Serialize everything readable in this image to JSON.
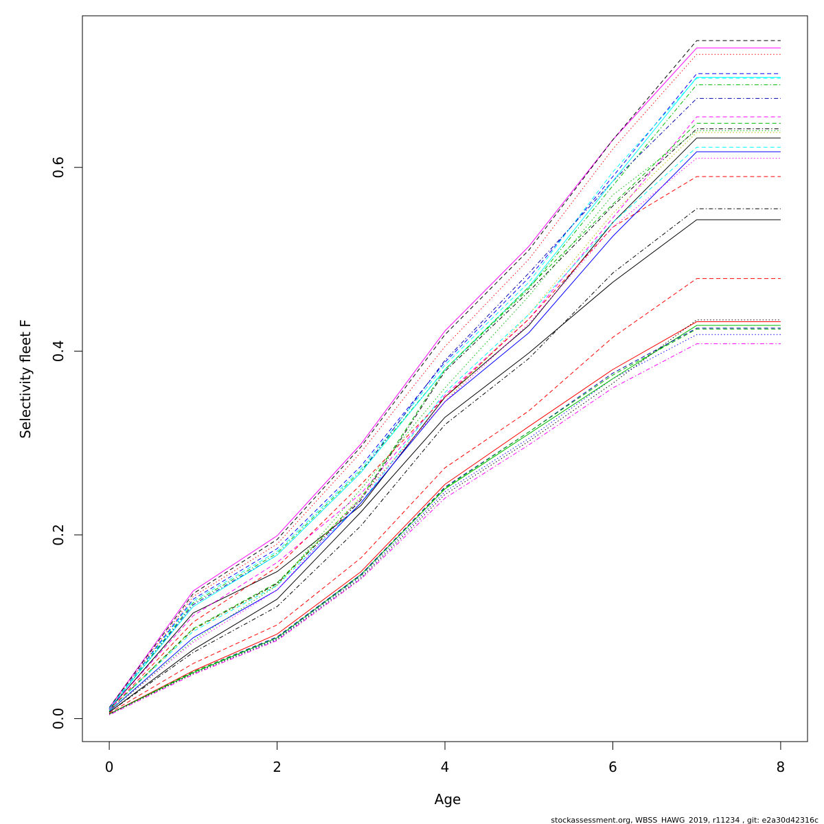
{
  "chart_data": {
    "type": "line",
    "xlabel": "Age",
    "ylabel": "Selectivity fleet F",
    "xlim": [
      -0.32,
      8.32
    ],
    "ylim": [
      -0.025,
      0.765
    ],
    "x_ticks": [
      0,
      2,
      4,
      6,
      8
    ],
    "y_ticks": [
      0.0,
      0.2,
      0.4,
      0.6
    ],
    "y_tick_labels": [
      "0.0",
      "0.2",
      "0.4",
      "0.6"
    ],
    "grid": false,
    "legend": "none",
    "footer": "stockassessment.org, WBSS_HAWG_2019, r11234 , git: e2a30d42316c",
    "x": [
      0,
      1,
      2,
      3,
      4,
      5,
      6,
      7,
      8
    ],
    "series": [
      {
        "color": "#ff00ff",
        "dash": "solid",
        "values": [
          0.012,
          0.139,
          0.199,
          0.299,
          0.422,
          0.514,
          0.63,
          0.73,
          0.73
        ]
      },
      {
        "color": "#000000",
        "dash": "dashed",
        "values": [
          0.012,
          0.136,
          0.195,
          0.296,
          0.418,
          0.51,
          0.63,
          0.738,
          0.738
        ]
      },
      {
        "color": "#ff0000",
        "dash": "dotted",
        "values": [
          0.011,
          0.133,
          0.19,
          0.29,
          0.405,
          0.5,
          0.62,
          0.723,
          0.723
        ]
      },
      {
        "color": "#0000ff",
        "dash": "dashed",
        "values": [
          0.011,
          0.13,
          0.185,
          0.275,
          0.388,
          0.48,
          0.59,
          0.702,
          0.702
        ]
      },
      {
        "color": "#00ffff",
        "dash": "dashed",
        "values": [
          0.011,
          0.128,
          0.182,
          0.272,
          0.385,
          0.475,
          0.595,
          0.697,
          0.697
        ]
      },
      {
        "color": "#00bb00",
        "dash": "dashdot",
        "values": [
          0.01,
          0.126,
          0.18,
          0.27,
          0.38,
          0.468,
          0.58,
          0.69,
          0.69
        ]
      },
      {
        "color": "#0000aa",
        "dash": "dashdot",
        "values": [
          0.01,
          0.124,
          0.178,
          0.268,
          0.39,
          0.485,
          0.585,
          0.675,
          0.675
        ]
      },
      {
        "color": "#00ffff",
        "dash": "solid",
        "values": [
          0.011,
          0.122,
          0.178,
          0.268,
          0.38,
          0.47,
          0.585,
          0.698,
          0.698
        ]
      },
      {
        "color": "#000000",
        "dash": "solid",
        "values": [
          0.01,
          0.115,
          0.16,
          0.232,
          0.35,
          0.428,
          0.54,
          0.632,
          0.632
        ]
      },
      {
        "color": "#ff00ff",
        "dash": "dashed",
        "values": [
          0.01,
          0.112,
          0.17,
          0.245,
          0.352,
          0.435,
          0.545,
          0.655,
          0.655
        ]
      },
      {
        "color": "#00bb00",
        "dash": "dashed",
        "values": [
          0.009,
          0.098,
          0.148,
          0.24,
          0.38,
          0.47,
          0.56,
          0.648,
          0.648
        ]
      },
      {
        "color": "#000000",
        "dash": "dashdot",
        "values": [
          0.009,
          0.097,
          0.147,
          0.238,
          0.378,
          0.465,
          0.558,
          0.642,
          0.642
        ]
      },
      {
        "color": "#ff0000",
        "dash": "dashed",
        "values": [
          0.009,
          0.105,
          0.165,
          0.255,
          0.35,
          0.435,
          0.535,
          0.59,
          0.59
        ]
      },
      {
        "color": "#bbbb00",
        "dash": "dotted",
        "values": [
          0.009,
          0.097,
          0.146,
          0.242,
          0.345,
          0.44,
          0.55,
          0.638,
          0.638
        ]
      },
      {
        "color": "#00ffff",
        "dash": "dashed",
        "values": [
          0.009,
          0.095,
          0.145,
          0.235,
          0.355,
          0.44,
          0.54,
          0.622,
          0.622
        ]
      },
      {
        "color": "#0000ff",
        "dash": "solid",
        "values": [
          0.008,
          0.088,
          0.14,
          0.235,
          0.345,
          0.42,
          0.525,
          0.617,
          0.617
        ]
      },
      {
        "color": "#ff00ff",
        "dash": "dotted",
        "values": [
          0.008,
          0.083,
          0.14,
          0.24,
          0.345,
          0.43,
          0.535,
          0.61,
          0.61
        ]
      },
      {
        "color": "#00bb00",
        "dash": "dotted",
        "values": [
          0.008,
          0.085,
          0.145,
          0.25,
          0.36,
          0.46,
          0.57,
          0.64,
          0.64
        ]
      },
      {
        "color": "#000000",
        "dash": "dashdot",
        "values": [
          0.007,
          0.072,
          0.122,
          0.21,
          0.32,
          0.392,
          0.485,
          0.555,
          0.555
        ]
      },
      {
        "color": "#000000",
        "dash": "solid",
        "values": [
          0.007,
          0.075,
          0.13,
          0.225,
          0.328,
          0.398,
          0.475,
          0.543,
          0.543
        ]
      },
      {
        "color": "#ff0000",
        "dash": "dashed",
        "values": [
          0.006,
          0.06,
          0.102,
          0.175,
          0.273,
          0.335,
          0.415,
          0.479,
          0.479
        ]
      },
      {
        "color": "#ff0000",
        "dash": "solid",
        "values": [
          0.005,
          0.052,
          0.092,
          0.16,
          0.255,
          0.318,
          0.38,
          0.432,
          0.432
        ]
      },
      {
        "color": "#0000ff",
        "dash": "dotted",
        "values": [
          0.005,
          0.05,
          0.087,
          0.155,
          0.247,
          0.305,
          0.37,
          0.418,
          0.418
        ]
      },
      {
        "color": "#00bb00",
        "dash": "solid",
        "values": [
          0.005,
          0.05,
          0.088,
          0.157,
          0.25,
          0.31,
          0.37,
          0.428,
          0.428
        ]
      },
      {
        "color": "#ff00ff",
        "dash": "dashdot",
        "values": [
          0.004,
          0.048,
          0.085,
          0.152,
          0.24,
          0.298,
          0.36,
          0.408,
          0.408
        ]
      },
      {
        "color": "#0000aa",
        "dash": "dashed",
        "values": [
          0.005,
          0.051,
          0.089,
          0.157,
          0.252,
          0.312,
          0.376,
          0.425,
          0.425
        ]
      },
      {
        "color": "#00bb00",
        "dash": "dashed",
        "values": [
          0.005,
          0.051,
          0.088,
          0.156,
          0.251,
          0.312,
          0.374,
          0.424,
          0.424
        ]
      },
      {
        "color": "#000000",
        "dash": "dotted",
        "values": [
          0.005,
          0.049,
          0.086,
          0.153,
          0.244,
          0.302,
          0.365,
          0.434,
          0.434
        ]
      }
    ]
  }
}
